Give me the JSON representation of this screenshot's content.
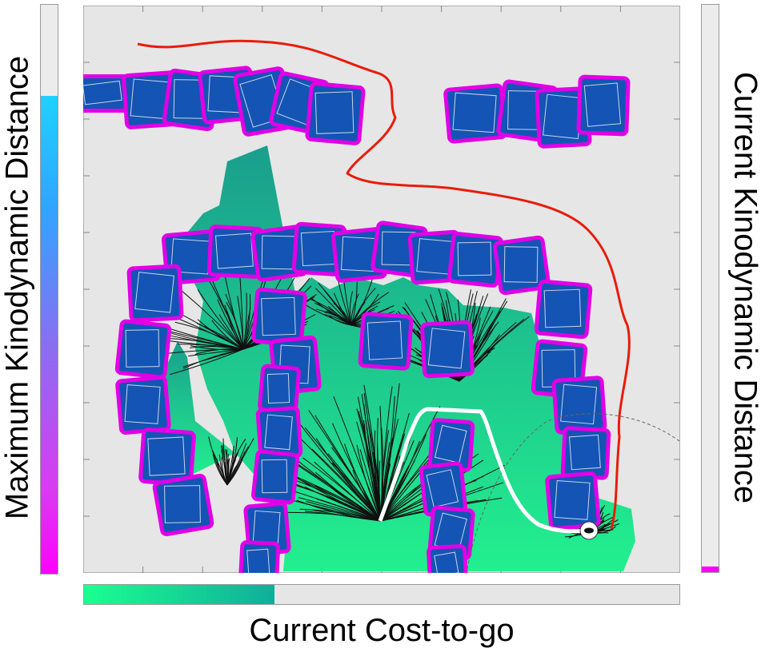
{
  "labels": {
    "left": "Maximum Kinodynamic Distance",
    "right": "Current Kinodynamic Distance",
    "bottom": "Current Cost-to-go"
  },
  "colors": {
    "background": "#e6e6e6",
    "obstacle_fill": "#1454b4",
    "obstacle_border": "#e100e6",
    "reachable_region": "#13c48a",
    "red_path": "#e81c0a",
    "white_path": "#ffffff",
    "tree_edges": "#101010"
  },
  "icons": {
    "robot": "robot-marker-icon"
  }
}
